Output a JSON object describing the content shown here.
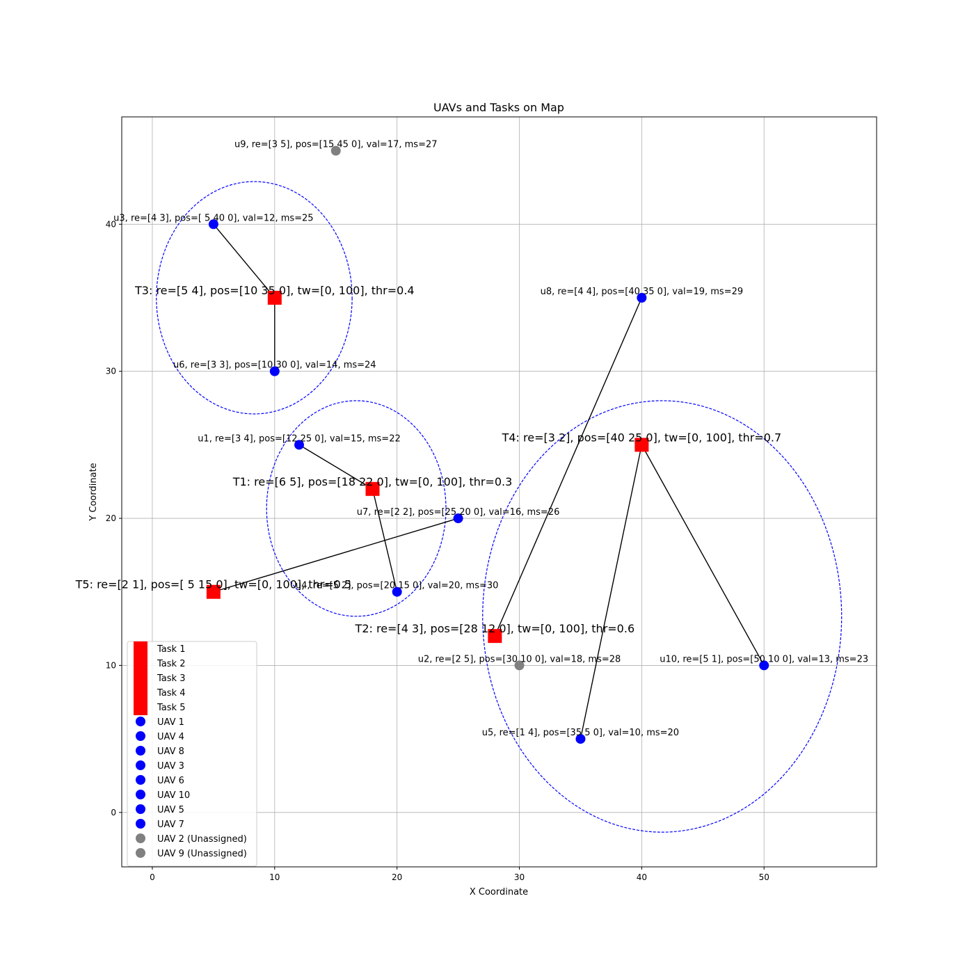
{
  "chart_data": {
    "type": "scatter",
    "title": "UAVs and Tasks on Map",
    "xlabel": "X Coordinate",
    "ylabel": "Y Coordinate",
    "xlim": [
      -2.5,
      59.2
    ],
    "ylim": [
      -3.7,
      47.3
    ],
    "xticks": [
      0,
      10,
      20,
      30,
      40,
      50
    ],
    "yticks": [
      0,
      10,
      20,
      30,
      40
    ],
    "grid": true,
    "legend_position": "lower left",
    "colors": {
      "task": "#ff0000",
      "uav_assigned": "#0000ff",
      "uav_unassigned": "#808080",
      "route": "#000000",
      "coalition_ellipse": "#0000ff"
    },
    "tasks": [
      {
        "id": "T1",
        "x": 18,
        "y": 22,
        "label": "T1: re=[6 5], pos=[18 22  0], tw=[0, 100], thr=0.3"
      },
      {
        "id": "T2",
        "x": 28,
        "y": 12,
        "label": "T2: re=[4 3], pos=[28 12  0], tw=[0, 100], thr=0.6"
      },
      {
        "id": "T3",
        "x": 10,
        "y": 35,
        "label": "T3: re=[5 4], pos=[10 35  0], tw=[0, 100], thr=0.4"
      },
      {
        "id": "T4",
        "x": 40,
        "y": 25,
        "label": "T4: re=[3 2], pos=[40 25  0], tw=[0, 100], thr=0.7"
      },
      {
        "id": "T5",
        "x": 5,
        "y": 15,
        "label": "T5: re=[2 1], pos=[ 5 15  0], tw=[0, 100], thr=0.5"
      }
    ],
    "uavs": [
      {
        "id": "u1",
        "x": 12,
        "y": 25,
        "assigned": true,
        "task": "T1",
        "label": "u1, re=[3 4], pos=[12 25  0], val=15, ms=22"
      },
      {
        "id": "u2",
        "x": 30,
        "y": 10,
        "assigned": false,
        "task": null,
        "label": "u2, re=[2 5], pos=[30 10  0], val=18, ms=28"
      },
      {
        "id": "u3",
        "x": 5,
        "y": 40,
        "assigned": true,
        "task": "T3",
        "label": "u3, re=[4 3], pos=[ 5 40  0], val=12, ms=25"
      },
      {
        "id": "u4",
        "x": 20,
        "y": 15,
        "assigned": true,
        "task": "T1",
        "label": "u4, re=[5 2], pos=[20 15  0], val=20, ms=30"
      },
      {
        "id": "u5",
        "x": 35,
        "y": 5,
        "assigned": true,
        "task": "T4",
        "label": "u5, re=[1 4], pos=[35  5  0], val=10, ms=20"
      },
      {
        "id": "u6",
        "x": 10,
        "y": 30,
        "assigned": true,
        "task": "T3",
        "label": "u6, re=[3 3], pos=[10 30  0], val=14, ms=24"
      },
      {
        "id": "u7",
        "x": 25,
        "y": 20,
        "assigned": true,
        "task": "T5",
        "label": "u7, re=[2 2], pos=[25 20  0], val=16, ms=26"
      },
      {
        "id": "u8",
        "x": 40,
        "y": 35,
        "assigned": true,
        "task": "T2",
        "label": "u8, re=[4 4], pos=[40 35  0], val=19, ms=29"
      },
      {
        "id": "u9",
        "x": 15,
        "y": 45,
        "assigned": false,
        "task": null,
        "label": "u9, re=[3 5], pos=[15 45  0], val=17, ms=27"
      },
      {
        "id": "u10",
        "x": 50,
        "y": 10,
        "assigned": true,
        "task": "T4",
        "label": "u10, re=[5 1], pos=[50 10  0], val=13, ms=23"
      }
    ],
    "coalition_ellipses": [
      {
        "task": "T3",
        "cx": 8.33,
        "cy": 35.0,
        "rx": 8.0,
        "ry": 7.9
      },
      {
        "task": "T1",
        "cx": 16.67,
        "cy": 20.67,
        "rx": 7.33,
        "ry": 7.33
      },
      {
        "task": "T4",
        "cx": 41.67,
        "cy": 13.33,
        "rx": 14.67,
        "ry": 14.67
      }
    ],
    "legend": [
      {
        "label": "Task 1",
        "kind": "task"
      },
      {
        "label": "Task 2",
        "kind": "task"
      },
      {
        "label": "Task 3",
        "kind": "task"
      },
      {
        "label": "Task 4",
        "kind": "task"
      },
      {
        "label": "Task 5",
        "kind": "task"
      },
      {
        "label": "UAV 1",
        "kind": "uav_assigned"
      },
      {
        "label": "UAV 4",
        "kind": "uav_assigned"
      },
      {
        "label": "UAV 8",
        "kind": "uav_assigned"
      },
      {
        "label": "UAV 3",
        "kind": "uav_assigned"
      },
      {
        "label": "UAV 6",
        "kind": "uav_assigned"
      },
      {
        "label": "UAV 10",
        "kind": "uav_assigned"
      },
      {
        "label": "UAV 5",
        "kind": "uav_assigned"
      },
      {
        "label": "UAV 7",
        "kind": "uav_assigned"
      },
      {
        "label": "UAV 2 (Unassigned)",
        "kind": "uav_unassigned"
      },
      {
        "label": "UAV 9 (Unassigned)",
        "kind": "uav_unassigned"
      }
    ]
  }
}
